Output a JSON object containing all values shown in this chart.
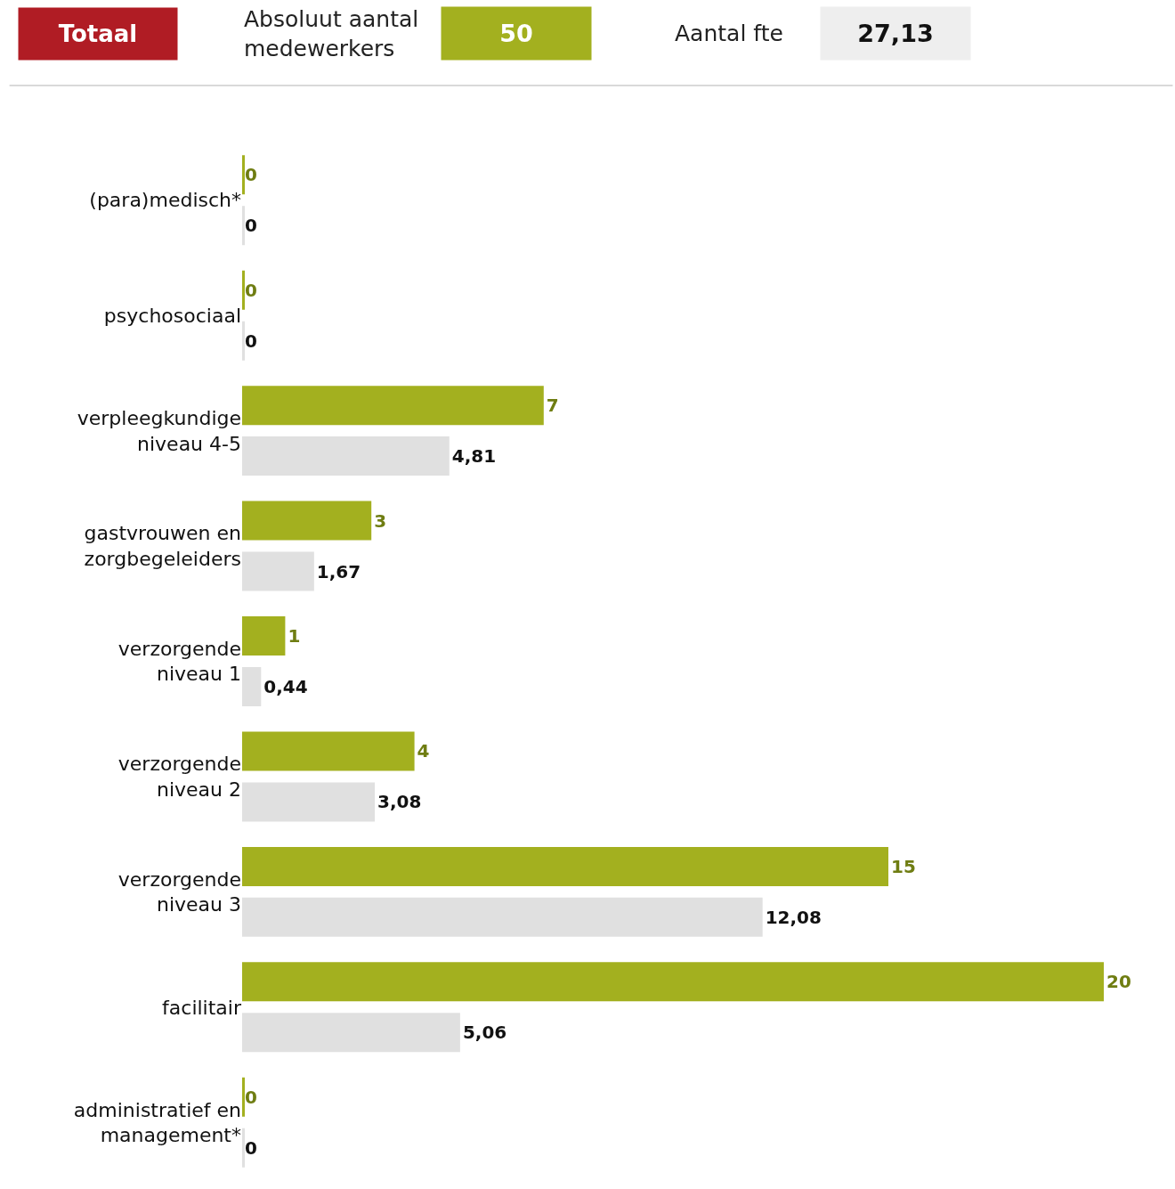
{
  "chart_data": {
    "type": "bar",
    "orientation": "horizontal",
    "legend": "top left",
    "categories": [
      "(para)medisch*",
      "psychosociaal",
      "verpleegkundige niveau 4-5",
      "gastvrouwen en zorgbegeleiders",
      "verzorgende niveau 1",
      "verzorgende niveau 2",
      "verzorgende niveau 3",
      "facilitair",
      "administratief en management*"
    ],
    "xlim": [
      0,
      20
    ],
    "series": [
      {
        "name": "Absoluut aantal medewerkers",
        "color": "#a3b01f",
        "values": [
          0,
          0,
          7,
          3,
          1,
          4,
          15,
          20,
          0
        ],
        "value_labels": [
          "0",
          "0",
          "7",
          "3",
          "1",
          "4",
          "15",
          "20",
          "0"
        ]
      },
      {
        "name": "Aantal fte",
        "color": "#e0e0e0",
        "values": [
          0,
          0,
          4.81,
          1.67,
          0.44,
          3.08,
          12.08,
          5.06,
          0
        ],
        "value_labels": [
          "0",
          "0",
          "4,81",
          "1,67",
          "0,44",
          "3,08",
          "12,08",
          "5,06",
          "0"
        ]
      }
    ],
    "annotations": [
      "Totaal",
      "50",
      "27,13"
    ]
  }
}
